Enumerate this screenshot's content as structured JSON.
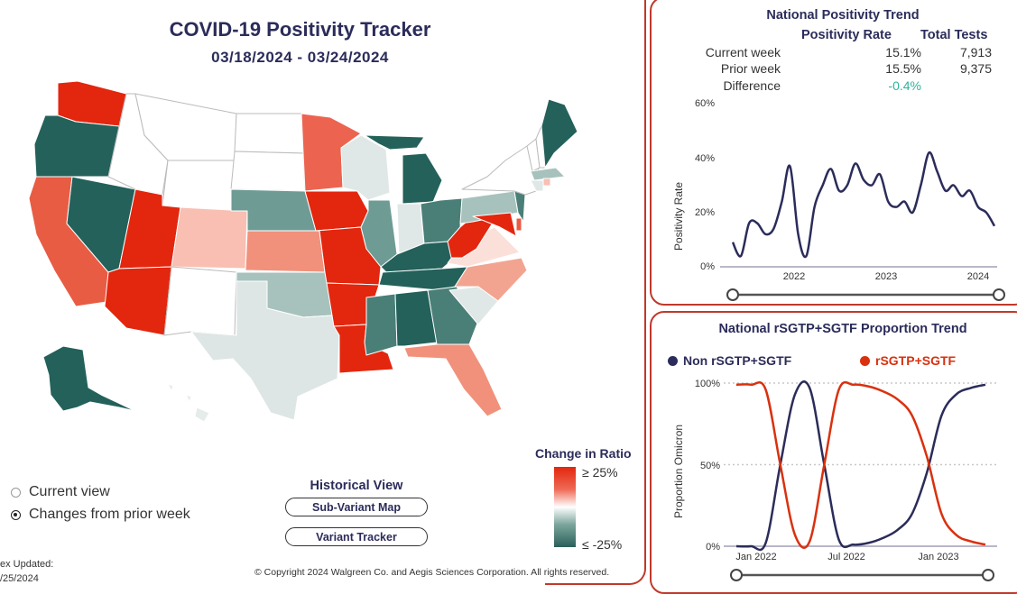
{
  "header": {
    "title": "COVID-19 Positivity Tracker",
    "date_range": "03/18/2024 - 03/24/2024"
  },
  "view_options": {
    "current": "Current view",
    "changes": "Changes from prior week",
    "selected": "changes"
  },
  "historical": {
    "heading": "Historical View",
    "sub_variant_button": "Sub-Variant Map",
    "variant_tracker_button": "Variant Tracker"
  },
  "legend": {
    "title": "Change in Ratio",
    "high": "≥ 25%",
    "low": "≤ -25%"
  },
  "index_updated": {
    "line1": "ex Updated:",
    "line2": "/25/2024"
  },
  "footer": {
    "copyright": "© Copyright 2024 Walgreen Co. and Aegis Sciences Corporation. All rights reserved."
  },
  "colors": {
    "accent_border": "#c0392b",
    "navy": "#2b2c5a",
    "red": "#e3260e",
    "dark_teal": "#23615a",
    "positive_diff": "#2bb59a"
  },
  "positivity": {
    "title": "National Positivity Trend",
    "col_rate": "Positivity Rate",
    "col_tests": "Total Tests",
    "rows": [
      {
        "label": "Current week",
        "rate": "15.1%",
        "tests": "7,913"
      },
      {
        "label": "Prior week",
        "rate": "15.5%",
        "tests": "9,375"
      },
      {
        "label": "Difference",
        "rate": "-0.4%",
        "tests": ""
      }
    ],
    "chart": {
      "ylabel": "Positivity Rate",
      "yticks": [
        "60%",
        "40%",
        "20%",
        "0%"
      ],
      "xticks": [
        "2022",
        "2023",
        "2024"
      ]
    }
  },
  "proportion": {
    "title": "National rSGTP+SGTF Proportion Trend",
    "legend_non": "Non rSGTP+SGTF",
    "legend_r": "rSGTP+SGTF",
    "chart": {
      "ylabel": "Proportion Omicron",
      "yticks": [
        "100%",
        "50%",
        "0%"
      ],
      "xticks": [
        "Jan 2022",
        "Jul 2022",
        "Jan 2023"
      ]
    }
  },
  "chart_data": [
    {
      "type": "line",
      "title": "National Positivity Trend",
      "ylabel": "Positivity Rate",
      "ylim": [
        0,
        60
      ],
      "x_range": [
        "2021-07",
        "2024-03"
      ],
      "grid": false,
      "series": [
        {
          "x": [
            "2021-07",
            "2021-08",
            "2021-09",
            "2021-10",
            "2021-11",
            "2021-12",
            "2022-01",
            "2022-02",
            "2022-03",
            "2022-04",
            "2022-05",
            "2022-06",
            "2022-07",
            "2022-08",
            "2022-09",
            "2022-10",
            "2022-11",
            "2022-12",
            "2023-01",
            "2023-02",
            "2023-03",
            "2023-04",
            "2023-05",
            "2023-06",
            "2023-07",
            "2023-08",
            "2023-09",
            "2023-10",
            "2023-11",
            "2023-12",
            "2024-01",
            "2024-02",
            "2024-03"
          ],
          "values": [
            9,
            4,
            16,
            16,
            12,
            14,
            24,
            37,
            12,
            4,
            22,
            30,
            36,
            28,
            30,
            38,
            32,
            30,
            34,
            24,
            22,
            24,
            20,
            30,
            42,
            35,
            28,
            30,
            26,
            28,
            22,
            20,
            15
          ]
        }
      ]
    },
    {
      "type": "line",
      "title": "National rSGTP+SGTF Proportion Trend",
      "ylabel": "Proportion Omicron",
      "ylim": [
        0,
        100
      ],
      "x_range": [
        "2021-12",
        "2023-05"
      ],
      "grid": true,
      "legend": "top",
      "series": [
        {
          "name": "Non rSGTP+SGTF",
          "x": [
            "2021-12",
            "2022-01",
            "2022-02",
            "2022-03",
            "2022-04",
            "2022-05",
            "2022-06",
            "2022-07",
            "2022-08",
            "2022-09",
            "2022-10",
            "2022-11",
            "2022-12",
            "2023-01",
            "2023-02",
            "2023-03",
            "2023-04",
            "2023-05"
          ],
          "values": [
            0,
            0,
            2,
            50,
            93,
            97,
            50,
            4,
            1,
            2,
            5,
            10,
            20,
            45,
            80,
            93,
            97,
            99
          ]
        },
        {
          "name": "rSGTP+SGTF",
          "x": [
            "2021-12",
            "2022-01",
            "2022-02",
            "2022-03",
            "2022-04",
            "2022-05",
            "2022-06",
            "2022-07",
            "2022-08",
            "2022-09",
            "2022-10",
            "2022-11",
            "2022-12",
            "2023-01",
            "2023-02",
            "2023-03",
            "2023-04",
            "2023-05"
          ],
          "values": [
            99,
            99,
            96,
            50,
            7,
            3,
            50,
            96,
            99,
            98,
            95,
            90,
            80,
            55,
            20,
            7,
            3,
            1
          ]
        }
      ]
    }
  ]
}
